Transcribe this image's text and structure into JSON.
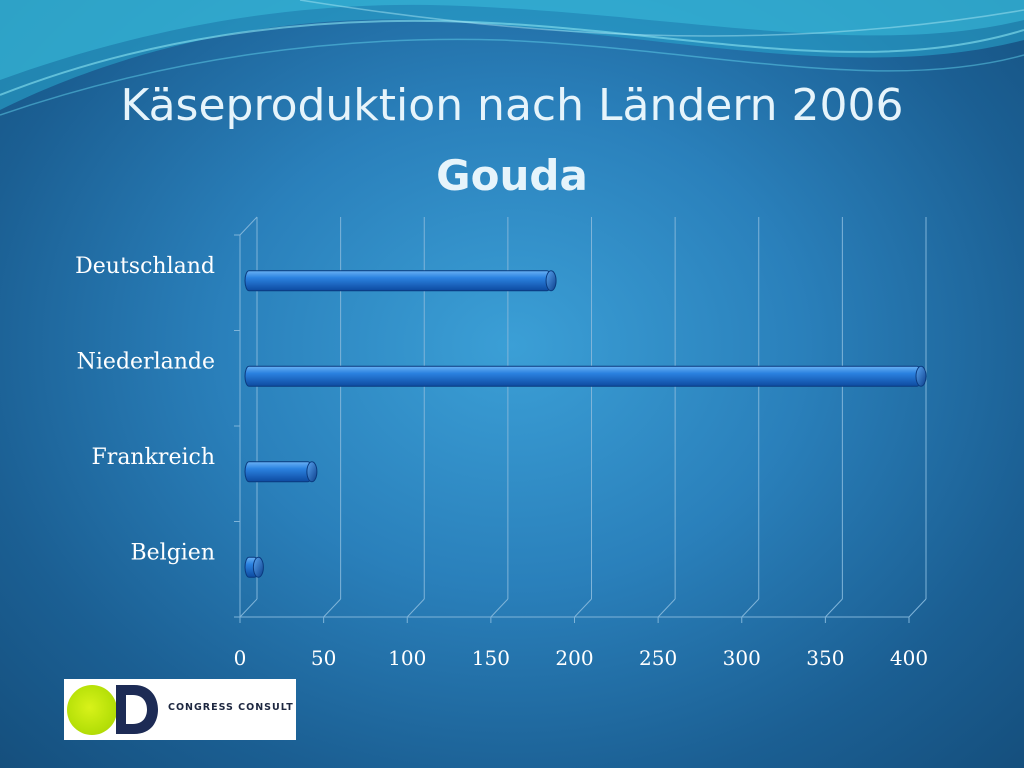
{
  "slide": {
    "title": "Käseproduktion nach Ländern 2006",
    "subtitle": "Gouda"
  },
  "logo": {
    "text": "CONGRESS  CONSULT",
    "icon": "congress-consult-logo"
  },
  "colors": {
    "bar": "#1a6fd4",
    "bar_light": "#5aa6f2",
    "bar_dark": "#0d4aa0",
    "grid": "#7fb4d9",
    "text": "#ffffff"
  },
  "chart_data": {
    "type": "bar",
    "orientation": "horizontal",
    "categories": [
      "Deutschland",
      "Niederlande",
      "Frankreich",
      "Belgien"
    ],
    "values": [
      183,
      405,
      40,
      8
    ],
    "xlim": [
      0,
      400
    ],
    "xticks": [
      0,
      50,
      100,
      150,
      200,
      250,
      300,
      350,
      400
    ],
    "xtick_labels": [
      "0",
      "50",
      "100",
      "150",
      "200",
      "250",
      "300",
      "350",
      "400"
    ],
    "grid": true,
    "legend": false,
    "xlabel": "",
    "ylabel": ""
  }
}
